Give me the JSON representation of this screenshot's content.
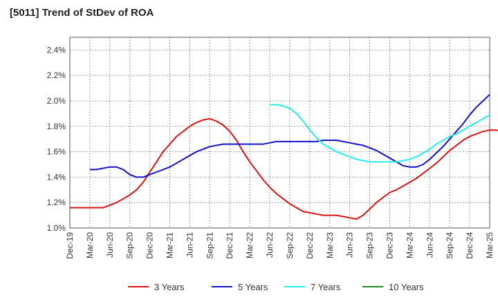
{
  "title": "[5011]  Trend of StDev of ROA",
  "chart_data": {
    "type": "line",
    "title": "[5011]  Trend of StDev of ROA",
    "xlabel": "",
    "ylabel": "",
    "ylim": [
      1.0,
      2.5
    ],
    "yticks": [
      "1.0%",
      "1.2%",
      "1.4%",
      "1.6%",
      "1.8%",
      "2.0%",
      "2.2%",
      "2.4%"
    ],
    "ytick_values": [
      1.0,
      1.2,
      1.4,
      1.6,
      1.8,
      2.0,
      2.2,
      2.4
    ],
    "xticks": [
      "Dec-19",
      "Mar-20",
      "Jun-20",
      "Sep-20",
      "Dec-20",
      "Mar-21",
      "Jun-21",
      "Sep-21",
      "Dec-21",
      "Mar-22",
      "Jun-22",
      "Sep-22",
      "Dec-22",
      "Mar-23",
      "Jun-23",
      "Sep-23",
      "Dec-23",
      "Mar-24",
      "Jun-24",
      "Sep-24",
      "Dec-24",
      "Mar-25"
    ],
    "grid": true,
    "legend_position": "bottom",
    "series": [
      {
        "name": "3 Years",
        "color": "#dd1111",
        "values": [
          1.16,
          1.16,
          1.16,
          1.16,
          1.16,
          1.16,
          1.18,
          1.2,
          1.23,
          1.26,
          1.3,
          1.36,
          1.44,
          1.52,
          1.6,
          1.66,
          1.72,
          1.76,
          1.8,
          1.83,
          1.85,
          1.86,
          1.84,
          1.81,
          1.76,
          1.69,
          1.6,
          1.52,
          1.45,
          1.38,
          1.32,
          1.27,
          1.23,
          1.19,
          1.16,
          1.13,
          1.12,
          1.11,
          1.1,
          1.1,
          1.1,
          1.09,
          1.08,
          1.07,
          1.1,
          1.15,
          1.2,
          1.24,
          1.28,
          1.3,
          1.33,
          1.36,
          1.39,
          1.43,
          1.47,
          1.51,
          1.56,
          1.61,
          1.65,
          1.69,
          1.72,
          1.74,
          1.76,
          1.77,
          1.77,
          1.76
        ]
      },
      {
        "name": "5 Years",
        "color": "#1111cc",
        "values": [
          null,
          null,
          null,
          1.46,
          1.46,
          1.47,
          1.48,
          1.48,
          1.46,
          1.42,
          1.4,
          1.4,
          1.42,
          1.44,
          1.46,
          1.48,
          1.51,
          1.54,
          1.57,
          1.6,
          1.62,
          1.64,
          1.65,
          1.66,
          1.66,
          1.66,
          1.66,
          1.66,
          1.66,
          1.66,
          1.67,
          1.68,
          1.68,
          1.68,
          1.68,
          1.68,
          1.68,
          1.68,
          1.69,
          1.69,
          1.69,
          1.68,
          1.67,
          1.66,
          1.65,
          1.63,
          1.61,
          1.58,
          1.55,
          1.52,
          1.49,
          1.48,
          1.48,
          1.5,
          1.54,
          1.59,
          1.64,
          1.7,
          1.76,
          1.82,
          1.89,
          1.95,
          2.0,
          2.05
        ]
      },
      {
        "name": "7 Years",
        "color": "#22eeee",
        "values": [
          null,
          null,
          null,
          null,
          null,
          null,
          null,
          null,
          null,
          null,
          null,
          null,
          null,
          null,
          null,
          null,
          null,
          null,
          null,
          null,
          null,
          null,
          null,
          null,
          null,
          null,
          null,
          null,
          null,
          null,
          1.97,
          1.97,
          1.96,
          1.94,
          1.9,
          1.84,
          1.77,
          1.71,
          1.66,
          1.63,
          1.6,
          1.58,
          1.56,
          1.54,
          1.53,
          1.52,
          1.52,
          1.52,
          1.52,
          1.52,
          1.53,
          1.54,
          1.56,
          1.59,
          1.62,
          1.66,
          1.69,
          1.72,
          1.74,
          1.77,
          1.8,
          1.83,
          1.86,
          1.89
        ]
      },
      {
        "name": "10 Years",
        "color": "#228822",
        "values": []
      }
    ]
  }
}
